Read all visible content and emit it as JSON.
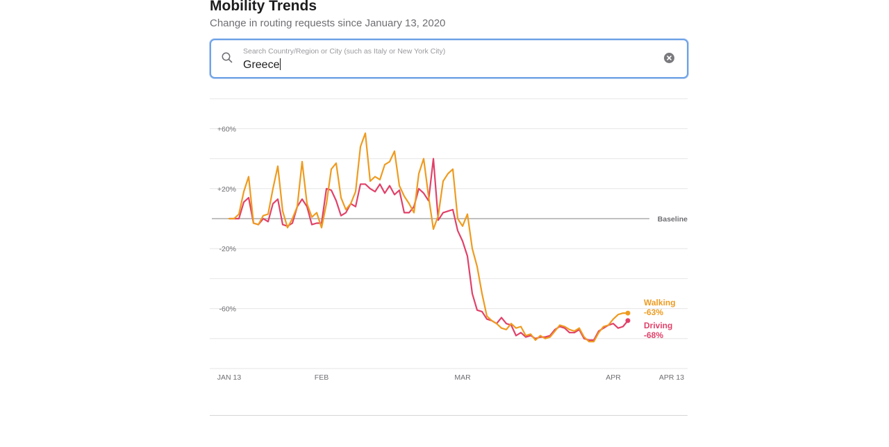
{
  "header": {
    "title": "Mobility Trends",
    "subtitle": "Change in routing requests since January 13, 2020"
  },
  "search": {
    "placeholder": "Search Country/Region or City (such as Italy or New York City)",
    "value": "Greece"
  },
  "icons": {
    "search": "search-icon",
    "clear": "clear-icon"
  },
  "colors": {
    "walking": "#ee9b1f",
    "driving": "#e04169",
    "baseline": "#9b9b9b",
    "grid": "#e6e6e6",
    "search_border": "#6ea2e6"
  },
  "chart_data": {
    "type": "line",
    "title": "",
    "xlabel": "",
    "ylabel": "",
    "ylim": [
      -100,
      80
    ],
    "y_ticks": [
      {
        "value": 60,
        "label": "+60%"
      },
      {
        "value": 20,
        "label": "+20%"
      },
      {
        "value": -20,
        "label": "-20%"
      },
      {
        "value": -60,
        "label": "-60%"
      }
    ],
    "x_ticks": [
      {
        "day": 0,
        "label": "JAN 13"
      },
      {
        "day": 19,
        "label": "FEB"
      },
      {
        "day": 48,
        "label": "MAR"
      },
      {
        "day": 79,
        "label": "APR"
      },
      {
        "day": 91,
        "label": "APR 13"
      }
    ],
    "baseline": {
      "value": 0,
      "label": "Baseline"
    },
    "series": [
      {
        "name": "Walking",
        "end_label": "-63%",
        "values": [
          0,
          0,
          3,
          18,
          28,
          -3,
          -4,
          2,
          3,
          20,
          35,
          5,
          -6,
          0,
          8,
          38,
          10,
          1,
          4,
          -6,
          10,
          33,
          37,
          14,
          6,
          10,
          18,
          48,
          57,
          25,
          28,
          26,
          36,
          38,
          45,
          22,
          15,
          10,
          4,
          30,
          40,
          15,
          -7,
          2,
          25,
          30,
          33,
          0,
          -5,
          3,
          -20,
          -32,
          -50,
          -65,
          -68,
          -70,
          -73,
          -74,
          -70,
          -73,
          -72,
          -78,
          -77,
          -81,
          -78,
          -80,
          -79,
          -75,
          -71,
          -72,
          -74,
          -75,
          -73,
          -79,
          -82,
          -82,
          -76,
          -72,
          -71,
          -67,
          -64,
          -63,
          -63
        ]
      },
      {
        "name": "Driving",
        "end_label": "-68%",
        "values": [
          0,
          0,
          0,
          11,
          14,
          -3,
          -4,
          0,
          -2,
          10,
          13,
          -4,
          -5,
          -3,
          8,
          13,
          8,
          -4,
          -3,
          -3,
          20,
          19,
          12,
          2,
          4,
          10,
          8,
          23,
          23,
          20,
          18,
          23,
          17,
          22,
          16,
          19,
          4,
          4,
          8,
          20,
          17,
          12,
          40,
          -1,
          4,
          5,
          6,
          -8,
          -15,
          -25,
          -50,
          -61,
          -62,
          -67,
          -68,
          -70,
          -66,
          -70,
          -71,
          -78,
          -76,
          -79,
          -78,
          -80,
          -79,
          -79,
          -78,
          -74,
          -72,
          -73,
          -76,
          -76,
          -74,
          -80,
          -81,
          -81,
          -75,
          -73,
          -71,
          -70,
          -73,
          -72,
          -68
        ]
      }
    ]
  }
}
